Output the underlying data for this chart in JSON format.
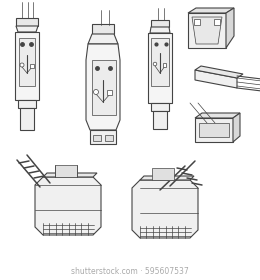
{
  "background_color": "#ffffff",
  "line_color": "#444444",
  "watermark_text": "shutterstock.com · 595607537",
  "watermark_color": "#aaaaaa",
  "watermark_fontsize": 5.5,
  "figsize": [
    2.6,
    2.8
  ],
  "dpi": 100
}
